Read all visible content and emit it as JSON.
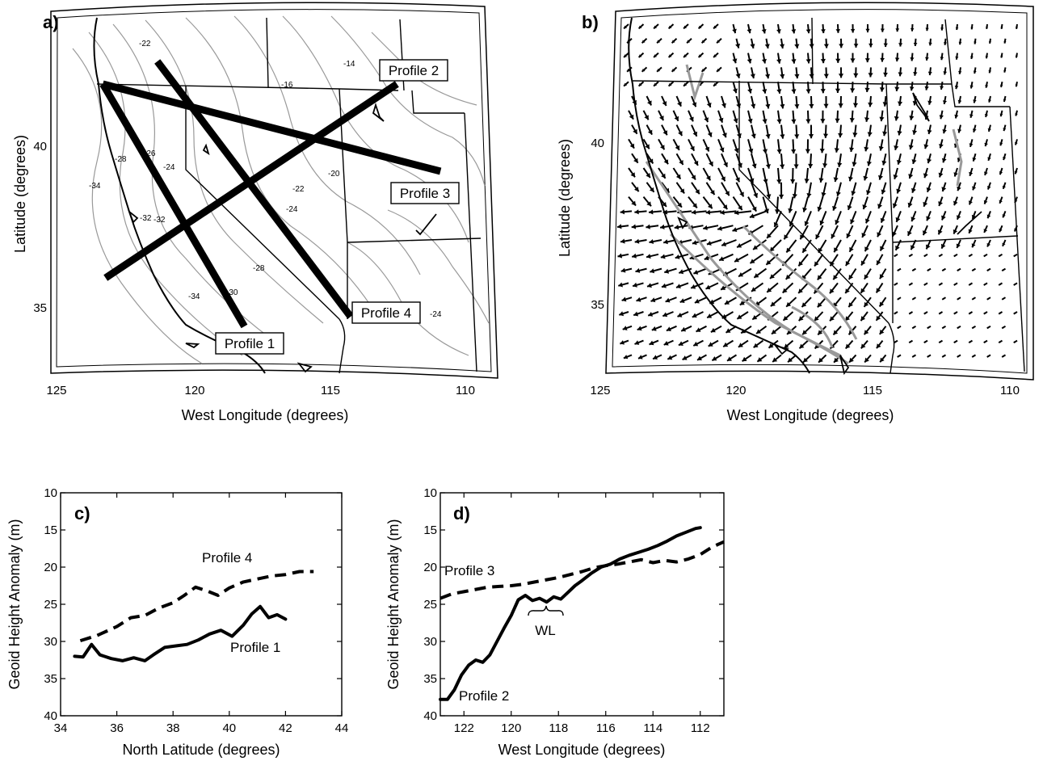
{
  "panels": {
    "a": {
      "label": "a)",
      "ylabel": "Latitude (degrees)",
      "xlabel": "West Longitude (degrees)",
      "xticks": [
        "125",
        "120",
        "115",
        "110"
      ],
      "yticks": [
        "40",
        "35"
      ],
      "contour_labels": [
        "-22",
        "-14",
        "-16",
        "-26",
        "-24",
        "-28",
        "-20",
        "-22",
        "-24",
        "-34",
        "-32",
        "-32",
        "-28",
        "-30",
        "-34",
        "-24"
      ],
      "profile_labels": [
        "Profile 2",
        "Profile 3",
        "Profile 4",
        "Profile 1"
      ]
    },
    "b": {
      "label": "b)",
      "ylabel": "Latitude (degrees)",
      "xlabel": "West Longitude (degrees)",
      "xticks": [
        "125",
        "120",
        "115",
        "110"
      ],
      "yticks": [
        "40",
        "35"
      ]
    },
    "c": {
      "label": "c)",
      "ylabel": "Geoid Height Anomaly (m)",
      "xlabel": "North Latitude (degrees)",
      "xticks": [
        "34",
        "36",
        "38",
        "40",
        "42",
        "44"
      ],
      "yticks": [
        "10",
        "15",
        "20",
        "25",
        "30",
        "35",
        "40"
      ],
      "series_labels": [
        "Profile 4",
        "Profile 1"
      ]
    },
    "d": {
      "label": "d)",
      "ylabel": "Geoid Height Anomaly (m)",
      "xlabel": "West Longitude (degrees)",
      "xticks": [
        "122",
        "120",
        "118",
        "116",
        "114",
        "112"
      ],
      "yticks": [
        "10",
        "15",
        "20",
        "25",
        "30",
        "35",
        "40"
      ],
      "series_labels": [
        "Profile 3",
        "Profile 2"
      ],
      "annotation": "WL"
    }
  },
  "chart_data": [
    {
      "panel": "a",
      "type": "other",
      "title": "",
      "xlabel": "West Longitude (degrees)",
      "ylabel": "Latitude (degrees)",
      "xlim": [
        125,
        109
      ],
      "ylim": [
        33.2,
        43
      ],
      "profiles": [
        {
          "name": "Profile 1",
          "start": [
            123.3,
            41.9
          ],
          "end": [
            118.1,
            34.4
          ]
        },
        {
          "name": "Profile 2",
          "start": [
            123.2,
            35.9
          ],
          "end": [
            112.5,
            41.9
          ]
        },
        {
          "name": "Profile 3",
          "start": [
            123.3,
            41.9
          ],
          "end": [
            110.9,
            39.2
          ]
        },
        {
          "name": "Profile 4",
          "start": [
            121.3,
            42.6
          ],
          "end": [
            114.2,
            34.7
          ]
        }
      ]
    },
    {
      "panel": "b",
      "type": "other",
      "title": "",
      "xlabel": "West Longitude (degrees)",
      "ylabel": "Latitude (degrees)",
      "xlim": [
        125,
        109
      ],
      "ylim": [
        33.2,
        43
      ]
    },
    {
      "panel": "c",
      "type": "line",
      "title": "",
      "xlabel": "North Latitude (degrees)",
      "ylabel": "Geoid Height Anomaly (m)",
      "xlim": [
        34,
        44
      ],
      "ylim": [
        40,
        10
      ],
      "y_reversed": true,
      "grid": false,
      "series": [
        {
          "name": "Profile 4",
          "style": "dashed",
          "x": [
            34.7,
            35.3,
            36.0,
            36.5,
            37.0,
            37.5,
            38.0,
            38.4,
            38.8,
            39.2,
            39.6,
            40.0,
            40.5,
            41.0,
            41.5,
            42.0,
            42.5,
            43.0
          ],
          "y": [
            29.9,
            29.2,
            28.0,
            26.8,
            26.5,
            25.5,
            24.8,
            23.8,
            22.7,
            23.2,
            23.8,
            22.8,
            22.0,
            21.6,
            21.2,
            21.0,
            20.6,
            20.6
          ]
        },
        {
          "name": "Profile 1",
          "style": "solid",
          "x": [
            34.5,
            34.8,
            35.1,
            35.4,
            35.8,
            36.2,
            36.6,
            37.0,
            37.3,
            37.7,
            38.1,
            38.5,
            38.9,
            39.3,
            39.7,
            40.1,
            40.5,
            40.8,
            41.1,
            41.4,
            41.7,
            42.0
          ],
          "y": [
            32.0,
            32.1,
            30.4,
            31.8,
            32.3,
            32.6,
            32.2,
            32.6,
            31.8,
            30.8,
            30.6,
            30.4,
            29.8,
            29.0,
            28.5,
            29.3,
            27.8,
            26.3,
            25.3,
            26.8,
            26.4,
            27.0
          ]
        }
      ]
    },
    {
      "panel": "d",
      "type": "line",
      "title": "",
      "xlabel": "West Longitude (degrees)",
      "ylabel": "Geoid Height Anomaly (m)",
      "xlim": [
        123,
        111
      ],
      "ylim": [
        40,
        10
      ],
      "y_reversed": true,
      "grid": false,
      "series": [
        {
          "name": "Profile 3",
          "style": "dashed",
          "x": [
            123.0,
            122.5,
            122.0,
            121.5,
            121.0,
            120.5,
            120.0,
            119.5,
            119.0,
            118.5,
            118.0,
            117.5,
            117.0,
            116.5,
            116.0,
            115.5,
            115.0,
            114.5,
            114.0,
            113.5,
            113.0,
            112.5,
            112.0,
            111.5,
            111.0
          ],
          "y": [
            24.2,
            23.6,
            23.3,
            23.0,
            22.7,
            22.6,
            22.5,
            22.3,
            22.0,
            21.7,
            21.4,
            21.0,
            20.6,
            20.1,
            19.8,
            19.6,
            19.3,
            19.0,
            19.4,
            19.1,
            19.3,
            18.9,
            18.3,
            17.3,
            16.6
          ]
        },
        {
          "name": "Profile 2",
          "style": "solid",
          "x": [
            123.0,
            122.7,
            122.4,
            122.1,
            121.8,
            121.5,
            121.2,
            120.9,
            120.6,
            120.3,
            120.0,
            119.7,
            119.4,
            119.1,
            118.8,
            118.5,
            118.2,
            117.9,
            117.6,
            117.3,
            117.0,
            116.6,
            116.2,
            115.8,
            115.4,
            115.0,
            114.6,
            114.2,
            113.8,
            113.4,
            113.0,
            112.6,
            112.2,
            112.0
          ],
          "y": [
            37.8,
            37.8,
            36.5,
            34.5,
            33.2,
            32.5,
            32.8,
            31.8,
            30.0,
            28.2,
            26.5,
            24.4,
            23.8,
            24.5,
            24.2,
            24.7,
            24.0,
            24.3,
            23.4,
            22.5,
            21.8,
            20.8,
            20.0,
            19.6,
            18.9,
            18.4,
            18.0,
            17.6,
            17.1,
            16.5,
            15.8,
            15.3,
            14.8,
            14.7
          ]
        }
      ]
    }
  ]
}
